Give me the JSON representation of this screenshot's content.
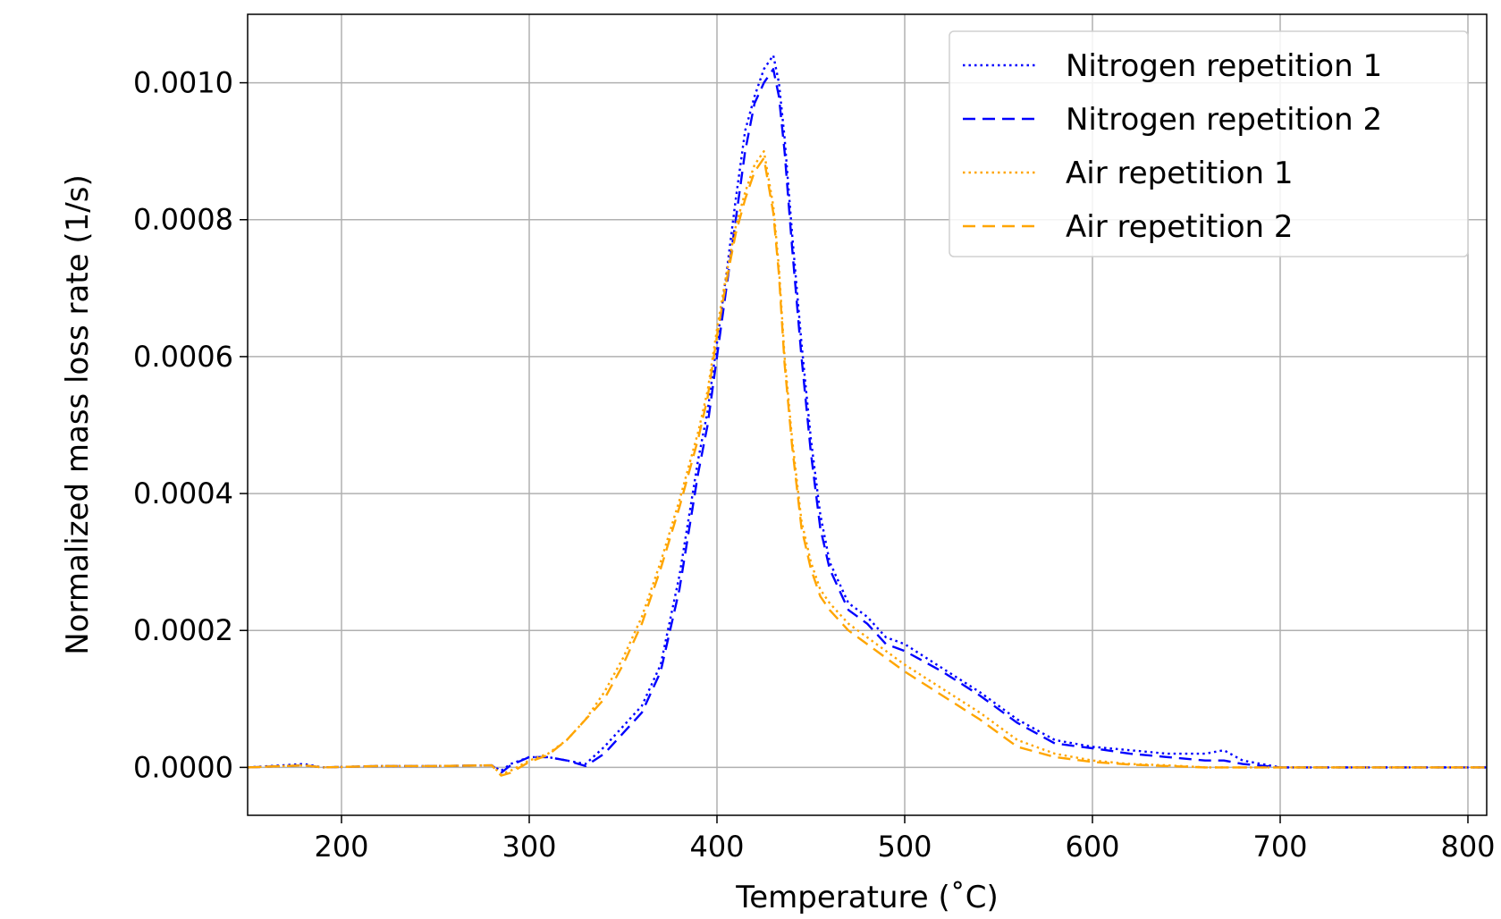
{
  "chart_data": {
    "type": "line",
    "title": "",
    "xlabel": "Temperature (˚C)",
    "ylabel": "Normalized mass loss rate (1/s)",
    "xlim": [
      150,
      810
    ],
    "ylim": [
      -7e-05,
      0.0011
    ],
    "x_ticks": [
      200,
      300,
      400,
      500,
      600,
      700,
      800
    ],
    "x_tick_labels": [
      "200",
      "300",
      "400",
      "500",
      "600",
      "700",
      "800"
    ],
    "y_ticks": [
      0.0,
      0.0002,
      0.0004,
      0.0006,
      0.0008,
      0.001
    ],
    "y_tick_labels": [
      "0.0000",
      "0.0002",
      "0.0004",
      "0.0006",
      "0.0008",
      "0.0010"
    ],
    "grid": true,
    "legend_position": "top-right",
    "series": [
      {
        "name": "Nitrogen repetition 1",
        "color": "#0000ff",
        "style": "dotted",
        "x": [
          150,
          180,
          190,
          220,
          250,
          280,
          285,
          290,
          300,
          310,
          320,
          330,
          340,
          350,
          360,
          370,
          380,
          390,
          395,
          400,
          405,
          410,
          415,
          420,
          425,
          430,
          433,
          436,
          440,
          445,
          450,
          455,
          460,
          470,
          480,
          490,
          500,
          520,
          540,
          560,
          580,
          600,
          620,
          640,
          660,
          670,
          680,
          700,
          750,
          810
        ],
        "y": [
          0,
          5e-06,
          0,
          2e-06,
          2e-06,
          3e-06,
          -5e-06,
          5e-06,
          1.5e-05,
          1.5e-05,
          1e-05,
          5e-06,
          3e-05,
          6e-05,
          9e-05,
          0.00015,
          0.00028,
          0.00045,
          0.00052,
          0.00062,
          0.00072,
          0.00083,
          0.00093,
          0.00098,
          0.00102,
          0.00104,
          0.001,
          0.00092,
          0.00078,
          0.00062,
          0.00048,
          0.00037,
          0.0003,
          0.00024,
          0.00022,
          0.00019,
          0.00018,
          0.000145,
          0.00011,
          7e-05,
          4e-05,
          3e-05,
          2.5e-05,
          2e-05,
          2e-05,
          2.5e-05,
          1e-05,
          0,
          0,
          0
        ]
      },
      {
        "name": "Nitrogen repetition 2",
        "color": "#0000ff",
        "style": "dashed",
        "x": [
          150,
          180,
          190,
          220,
          250,
          280,
          285,
          290,
          300,
          310,
          320,
          330,
          340,
          350,
          360,
          370,
          380,
          390,
          395,
          400,
          405,
          410,
          415,
          420,
          425,
          430,
          433,
          436,
          440,
          445,
          450,
          455,
          460,
          470,
          480,
          490,
          500,
          520,
          540,
          560,
          580,
          600,
          620,
          640,
          660,
          670,
          680,
          700,
          750,
          810
        ],
        "y": [
          0,
          3e-06,
          0,
          2e-06,
          2e-06,
          3e-06,
          -8e-06,
          3e-06,
          1.5e-05,
          1.5e-05,
          1e-05,
          2e-06,
          2e-05,
          5e-05,
          8e-05,
          0.00014,
          0.00026,
          0.00043,
          0.0005,
          0.0006,
          0.0007,
          0.0008,
          0.0009,
          0.00097,
          0.001,
          0.00102,
          0.00098,
          0.0009,
          0.00076,
          0.0006,
          0.00046,
          0.00035,
          0.00029,
          0.00023,
          0.00021,
          0.00018,
          0.00017,
          0.00014,
          0.000105,
          6.5e-05,
          3.5e-05,
          2.8e-05,
          2e-05,
          1.5e-05,
          1e-05,
          1e-05,
          5e-06,
          0,
          0,
          0
        ]
      },
      {
        "name": "Air repetition 1",
        "color": "#ffa500",
        "style": "dotted",
        "x": [
          150,
          180,
          190,
          220,
          250,
          280,
          285,
          290,
          300,
          310,
          320,
          330,
          340,
          350,
          360,
          370,
          380,
          390,
          395,
          400,
          405,
          410,
          415,
          420,
          425,
          430,
          433,
          436,
          440,
          445,
          450,
          455,
          460,
          470,
          480,
          490,
          500,
          520,
          540,
          560,
          580,
          600,
          620,
          640,
          660,
          670,
          680,
          700,
          750,
          810
        ],
        "y": [
          0,
          3e-06,
          0,
          2e-06,
          2e-06,
          3e-06,
          -1e-05,
          -5e-06,
          1e-05,
          2e-05,
          4e-05,
          7e-05,
          0.00011,
          0.00016,
          0.00022,
          0.0003,
          0.00039,
          0.00049,
          0.00055,
          0.00064,
          0.00072,
          0.00079,
          0.00084,
          0.00088,
          0.0009,
          0.00082,
          0.00073,
          0.0006,
          0.00048,
          0.00036,
          0.0003,
          0.00026,
          0.00024,
          0.00021,
          0.00019,
          0.00017,
          0.00015,
          0.000115,
          8e-05,
          4e-05,
          2e-05,
          1e-05,
          5e-06,
          3e-06,
          0,
          0,
          0,
          0,
          0,
          0
        ]
      },
      {
        "name": "Air repetition 2",
        "color": "#ffa500",
        "style": "dashed",
        "x": [
          150,
          180,
          190,
          220,
          250,
          280,
          285,
          290,
          300,
          310,
          320,
          330,
          340,
          350,
          360,
          370,
          380,
          390,
          395,
          400,
          405,
          410,
          415,
          420,
          425,
          430,
          433,
          436,
          440,
          445,
          450,
          455,
          460,
          470,
          480,
          490,
          500,
          520,
          540,
          560,
          580,
          600,
          620,
          640,
          660,
          670,
          680,
          700,
          750,
          810
        ],
        "y": [
          0,
          3e-06,
          0,
          2e-06,
          2e-06,
          3e-06,
          -1.2e-05,
          -8e-06,
          8e-06,
          1.8e-05,
          4e-05,
          7e-05,
          0.0001,
          0.00015,
          0.00021,
          0.00029,
          0.00038,
          0.00048,
          0.00054,
          0.00063,
          0.00071,
          0.00078,
          0.00083,
          0.00087,
          0.00089,
          0.00081,
          0.00072,
          0.00059,
          0.00047,
          0.00035,
          0.00029,
          0.00025,
          0.00023,
          0.0002,
          0.00018,
          0.00016,
          0.00014,
          0.000105,
          7e-05,
          3e-05,
          1.5e-05,
          8e-06,
          4e-06,
          2e-06,
          0,
          0,
          0,
          0,
          0,
          0
        ]
      }
    ]
  }
}
